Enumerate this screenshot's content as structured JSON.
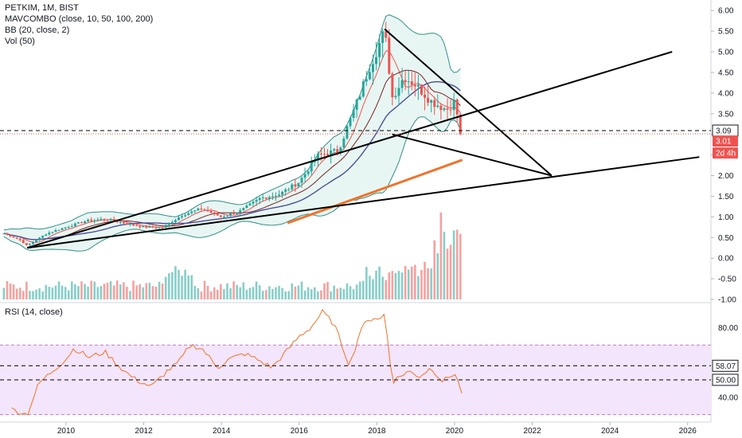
{
  "header": {
    "title": "PETKIM, 1M, BIST",
    "indicators": [
      "MAVCOMBO (close, 10, 50, 100, 200)",
      "BB (20, close, 2)",
      "Vol (50)"
    ],
    "rsi_label": "RSI (14, close)"
  },
  "price_badges": {
    "last_close": "3.01",
    "countdown": "2d 4h",
    "hline": "3.09"
  },
  "rsi_badges": [
    "58.07",
    "50.00"
  ],
  "colors": {
    "up": "#26a69a",
    "down": "#ef5350",
    "ma10": "#ef5350",
    "ma50": "#7b1f1f",
    "ma100": "#4b4e9c",
    "ma200": "#f0732a",
    "bb": "#2f8f86",
    "bb_fill": "#e8f6f3",
    "rsi_line": "#f0732a",
    "rsi_band": "#f3e5fb",
    "trend": "#000000"
  },
  "chart_data": [
    {
      "type": "candlestick",
      "symbol": "PETKIM",
      "interval": "1M",
      "exchange": "BIST",
      "x_ticks": [
        "2010",
        "2012",
        "2014",
        "2016",
        "2018",
        "2020",
        "2022",
        "2024",
        "2026"
      ],
      "y_ticks": [
        "6.00",
        "5.50",
        "5.00",
        "4.50",
        "4.00",
        "3.50",
        "3.00",
        "2.50",
        "2.00",
        "1.50",
        "1.00",
        "0.50",
        "0.00",
        "-0.50",
        "-1.00"
      ],
      "ylim": [
        -1.0,
        6.1
      ],
      "xlim": [
        2008.3,
        2026.6
      ],
      "last_close": 3.01,
      "horizontal_line": 3.09,
      "anchors": [
        [
          2008.4,
          0.6
        ],
        [
          2008.8,
          0.45
        ],
        [
          2009.0,
          0.3
        ],
        [
          2009.5,
          0.6
        ],
        [
          2010.0,
          0.75
        ],
        [
          2010.5,
          0.9
        ],
        [
          2011.0,
          0.95
        ],
        [
          2011.5,
          0.85
        ],
        [
          2012.0,
          0.75
        ],
        [
          2012.5,
          0.75
        ],
        [
          2013.0,
          1.05
        ],
        [
          2013.5,
          1.2
        ],
        [
          2014.0,
          1.0
        ],
        [
          2014.5,
          1.15
        ],
        [
          2015.0,
          1.45
        ],
        [
          2015.5,
          1.55
        ],
        [
          2016.0,
          1.85
        ],
        [
          2016.5,
          2.5
        ],
        [
          2017.0,
          2.6
        ],
        [
          2017.5,
          3.8
        ],
        [
          2017.8,
          4.6
        ],
        [
          2018.2,
          5.5
        ],
        [
          2018.4,
          3.9
        ],
        [
          2018.7,
          4.4
        ],
        [
          2019.0,
          4.2
        ],
        [
          2019.4,
          3.8
        ],
        [
          2019.8,
          3.6
        ],
        [
          2020.0,
          3.8
        ],
        [
          2020.17,
          3.01
        ]
      ],
      "volume_peaks": [
        [
          2018.3,
          0.35
        ],
        [
          2019.3,
          0.45
        ],
        [
          2020.0,
          0.92
        ]
      ],
      "trendlines": [
        {
          "from": [
            2009.0,
            0.25
          ],
          "to": [
            2025.6,
            5.0
          ]
        },
        {
          "from": [
            2009.0,
            0.25
          ],
          "to": [
            2026.3,
            2.45
          ]
        },
        {
          "from": [
            2018.2,
            5.55
          ],
          "to": [
            2022.5,
            2.0
          ]
        },
        {
          "from": [
            2018.4,
            3.0
          ],
          "to": [
            2022.5,
            2.0
          ]
        }
      ],
      "ma200_segment": {
        "from": [
          2015.7,
          0.85
        ],
        "to": [
          2020.2,
          2.38
        ]
      }
    },
    {
      "type": "line",
      "title": "RSI (14, close)",
      "y_ticks": [
        "80.00",
        "40.00"
      ],
      "ylim": [
        28,
        93
      ],
      "band": [
        30,
        70
      ],
      "hlines": [
        58.07,
        50.0
      ],
      "anchors": [
        [
          2008.6,
          33
        ],
        [
          2009.0,
          30
        ],
        [
          2009.3,
          48
        ],
        [
          2009.7,
          56
        ],
        [
          2010.0,
          62
        ],
        [
          2010.2,
          68
        ],
        [
          2010.6,
          63
        ],
        [
          2011.0,
          66
        ],
        [
          2011.5,
          55
        ],
        [
          2011.8,
          50
        ],
        [
          2012.2,
          46
        ],
        [
          2012.6,
          55
        ],
        [
          2012.9,
          60
        ],
        [
          2013.2,
          70
        ],
        [
          2013.5,
          68
        ],
        [
          2013.9,
          57
        ],
        [
          2014.2,
          62
        ],
        [
          2014.6,
          65
        ],
        [
          2014.9,
          62
        ],
        [
          2015.3,
          57
        ],
        [
          2015.7,
          67
        ],
        [
          2016.0,
          75
        ],
        [
          2016.3,
          80
        ],
        [
          2016.6,
          89
        ],
        [
          2016.9,
          82
        ],
        [
          2017.3,
          58
        ],
        [
          2017.6,
          80
        ],
        [
          2017.9,
          86
        ],
        [
          2018.1,
          85
        ],
        [
          2018.2,
          88
        ],
        [
          2018.4,
          49
        ],
        [
          2018.8,
          55
        ],
        [
          2019.1,
          52
        ],
        [
          2019.4,
          57
        ],
        [
          2019.7,
          49
        ],
        [
          2020.0,
          54
        ],
        [
          2020.2,
          42
        ]
      ]
    }
  ]
}
